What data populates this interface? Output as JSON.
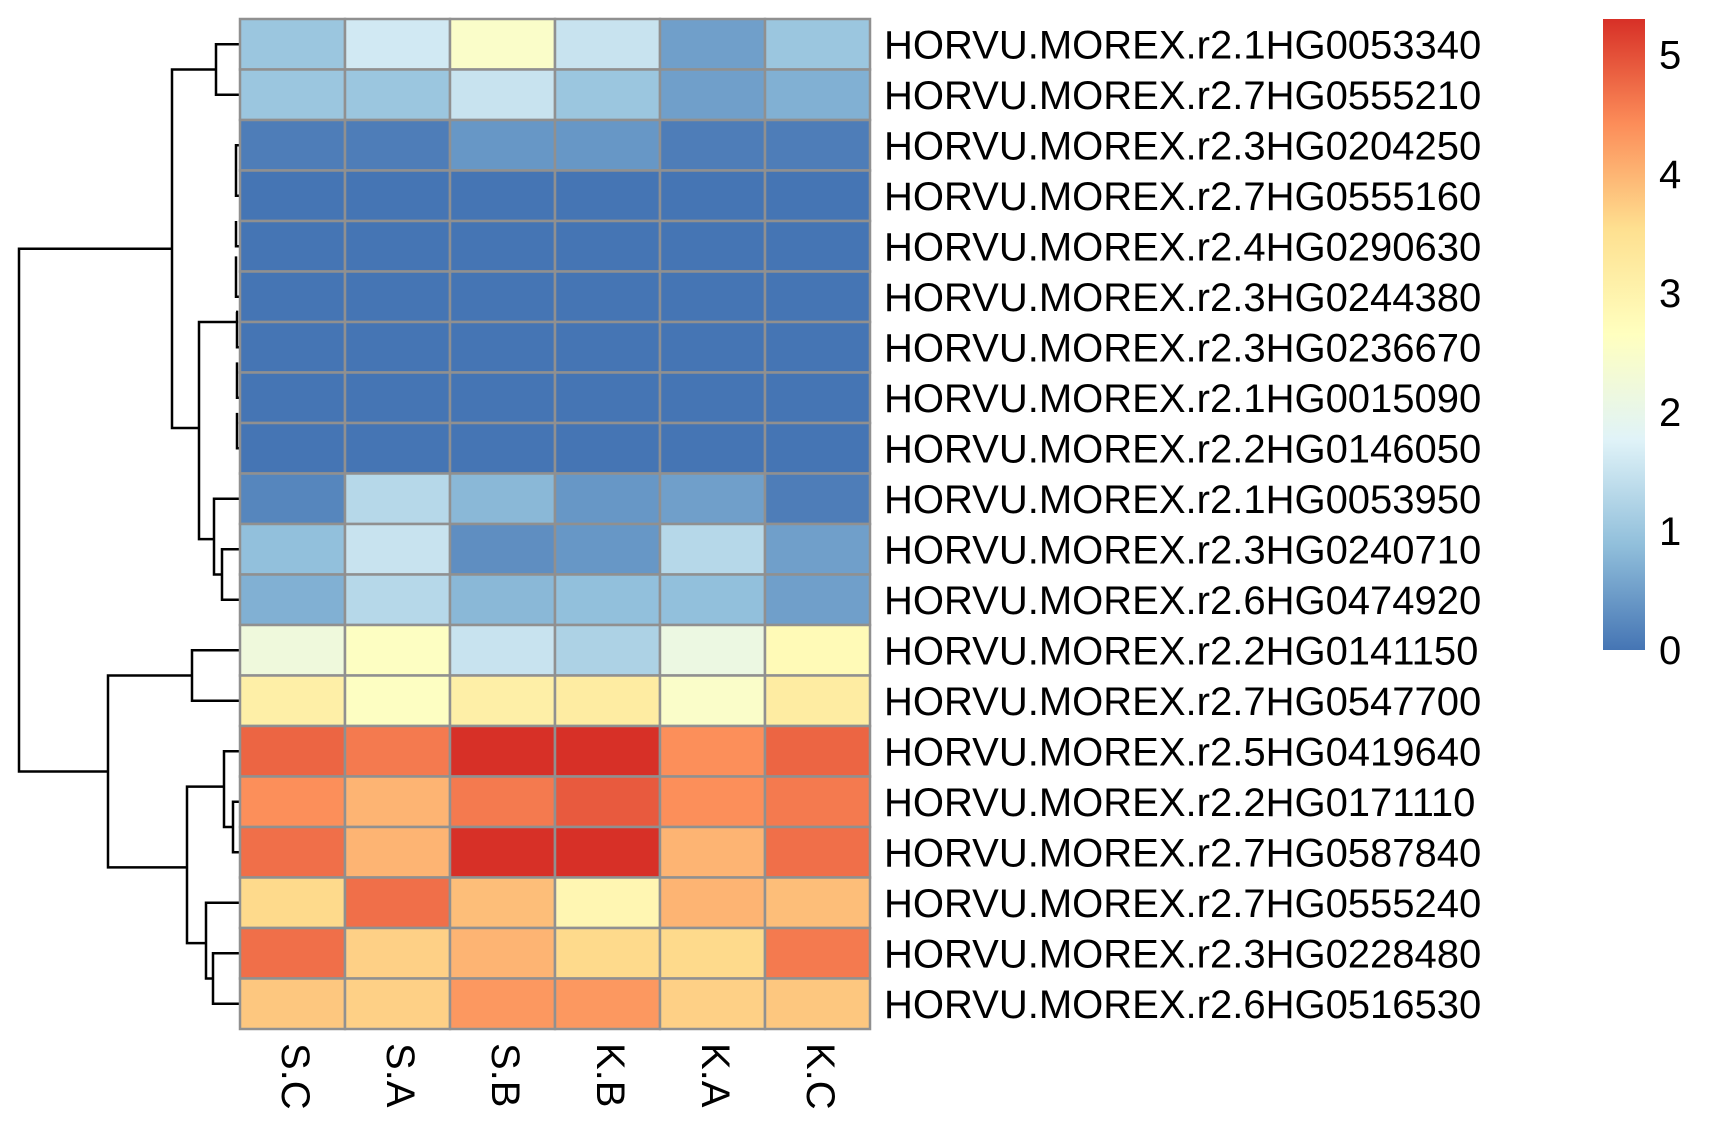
{
  "chart_data": {
    "type": "heatmap",
    "columns": [
      "S.C",
      "S.A",
      "S.B",
      "K.B",
      "K.A",
      "K.C"
    ],
    "rows": [
      "HORVU.MOREX.r2.1HG0053340",
      "HORVU.MOREX.r2.7HG0555210",
      "HORVU.MOREX.r2.3HG0204250",
      "HORVU.MOREX.r2.7HG0555160",
      "HORVU.MOREX.r2.4HG0290630",
      "HORVU.MOREX.r2.3HG0244380",
      "HORVU.MOREX.r2.3HG0236670",
      "HORVU.MOREX.r2.1HG0015090",
      "HORVU.MOREX.r2.2HG0146050",
      "HORVU.MOREX.r2.1HG0053950",
      "HORVU.MOREX.r2.3HG0240710",
      "HORVU.MOREX.r2.6HG0474920",
      "HORVU.MOREX.r2.2HG0141150",
      "HORVU.MOREX.r2.7HG0547700",
      "HORVU.MOREX.r2.5HG0419640",
      "HORVU.MOREX.r2.2HG0171110",
      "HORVU.MOREX.r2.7HG0587840",
      "HORVU.MOREX.r2.7HG0555240",
      "HORVU.MOREX.r2.3HG0228480",
      "HORVU.MOREX.r2.6HG0516530"
    ],
    "values": [
      [
        1.0,
        1.6,
        2.5,
        1.5,
        0.5,
        1.0
      ],
      [
        1.0,
        1.0,
        1.5,
        1.0,
        0.5,
        0.7
      ],
      [
        0.1,
        0.1,
        0.4,
        0.4,
        0.1,
        0.1
      ],
      [
        0.0,
        0.0,
        0.0,
        0.0,
        0.0,
        0.0
      ],
      [
        0.0,
        0.0,
        0.0,
        0.0,
        0.0,
        0.0
      ],
      [
        0.0,
        0.0,
        0.0,
        0.0,
        0.0,
        0.0
      ],
      [
        0.0,
        0.0,
        0.0,
        0.0,
        0.0,
        0.0
      ],
      [
        0.0,
        0.0,
        0.0,
        0.0,
        0.0,
        0.0
      ],
      [
        0.0,
        0.0,
        0.0,
        0.0,
        0.0,
        0.0
      ],
      [
        0.2,
        1.3,
        0.8,
        0.4,
        0.5,
        0.1
      ],
      [
        0.9,
        1.5,
        0.3,
        0.4,
        1.3,
        0.5
      ],
      [
        0.7,
        1.3,
        0.8,
        0.9,
        0.9,
        0.5
      ],
      [
        2.2,
        2.6,
        1.5,
        1.2,
        2.1,
        2.8
      ],
      [
        3.1,
        2.6,
        3.1,
        3.2,
        2.5,
        3.2
      ],
      [
        4.8,
        4.6,
        5.3,
        5.3,
        4.4,
        4.8
      ],
      [
        4.4,
        4.0,
        4.6,
        4.9,
        4.4,
        4.6
      ],
      [
        4.7,
        4.0,
        5.3,
        5.3,
        4.0,
        4.7
      ],
      [
        3.6,
        4.7,
        3.9,
        2.9,
        4.0,
        3.9
      ],
      [
        4.7,
        3.7,
        4.0,
        3.6,
        3.6,
        4.6
      ],
      [
        3.8,
        3.7,
        4.3,
        4.3,
        3.7,
        3.8
      ]
    ],
    "color_scale": {
      "min": 0,
      "max": 5.3,
      "stops": [
        "#4575B4",
        "#91BFDB",
        "#E0F3F8",
        "#FFFFBF",
        "#FEE090",
        "#FC8D59",
        "#D73027"
      ]
    },
    "legend": {
      "position": "right",
      "ticks": [
        "0",
        "1",
        "2",
        "3",
        "4",
        "5"
      ]
    },
    "cell_border_color": "#909090",
    "row_dendrogram": true,
    "column_dendrogram": false
  }
}
